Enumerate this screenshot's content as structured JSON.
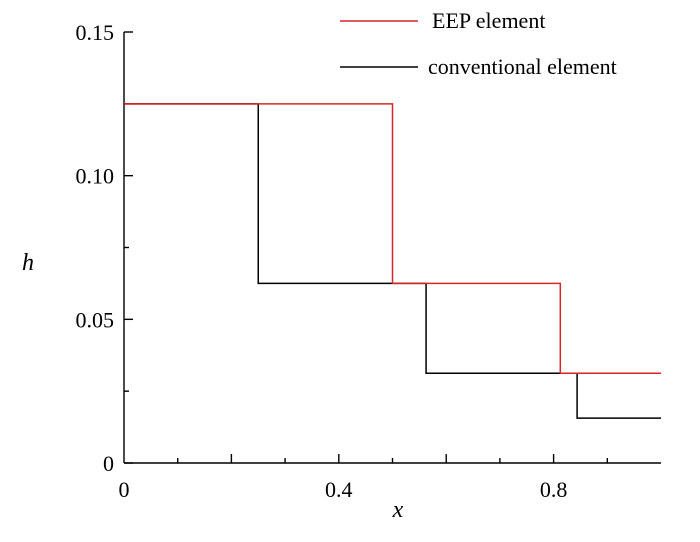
{
  "chart_data": {
    "type": "line",
    "step": true,
    "xlabel": "x",
    "ylabel": "h",
    "xlim": [
      0,
      1
    ],
    "ylim": [
      0,
      0.15
    ],
    "x_ticks": [
      0,
      0.4,
      0.8
    ],
    "x_tick_labels": [
      "0",
      "0.4",
      "0.8"
    ],
    "x_minor_step": 0.1,
    "y_ticks": [
      0,
      0.05,
      0.1,
      0.15
    ],
    "y_tick_labels": [
      "0",
      "0.05",
      "0.10",
      "0.15"
    ],
    "y_minor_step": 0.025,
    "legend_position": "top-right",
    "grid": false,
    "series": [
      {
        "name": "EEP element",
        "color": "#d62728",
        "x": [
          0,
          0.5,
          0.5,
          0.8125,
          0.8125,
          1.0
        ],
        "y": [
          0.125,
          0.125,
          0.0625,
          0.0625,
          0.03125,
          0.03125
        ]
      },
      {
        "name": "conventional element",
        "color": "#000000",
        "x": [
          0,
          0.25,
          0.25,
          0.5625,
          0.5625,
          0.84375,
          0.84375,
          1.0
        ],
        "y": [
          0.125,
          0.125,
          0.0625,
          0.0625,
          0.03125,
          0.03125,
          0.015625,
          0.015625
        ]
      }
    ]
  }
}
